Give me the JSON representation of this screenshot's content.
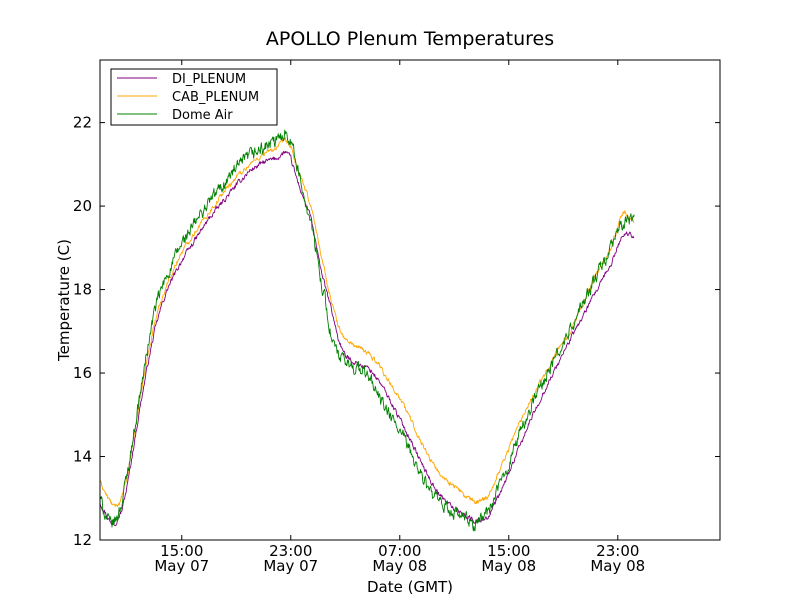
{
  "chart_data": {
    "type": "line",
    "title": "APOLLO Plenum Temperatures",
    "xlabel": "Date (GMT)",
    "ylabel": "Temperature (C)",
    "x_unit": "hours since May 07 00:00 GMT",
    "xlim": [
      9.0,
      54.5
    ],
    "ylim": [
      12,
      23.5
    ],
    "grid": false,
    "legend_position": "top-left",
    "y_ticks": [
      {
        "value": 12,
        "label": "12"
      },
      {
        "value": 14,
        "label": "14"
      },
      {
        "value": 16,
        "label": "16"
      },
      {
        "value": 18,
        "label": "18"
      },
      {
        "value": 20,
        "label": "20"
      },
      {
        "value": 22,
        "label": "22"
      }
    ],
    "x_ticks": [
      {
        "value": 15,
        "time": "15:00",
        "date": "May 07"
      },
      {
        "value": 23,
        "time": "23:00",
        "date": "May 07"
      },
      {
        "value": 31,
        "time": "07:00",
        "date": "May 08"
      },
      {
        "value": 39,
        "time": "15:00",
        "date": "May 08"
      },
      {
        "value": 47,
        "time": "23:00",
        "date": "May 08"
      }
    ],
    "series": [
      {
        "name": "DI_PLENUM",
        "color": "#800080",
        "noise": 0.05,
        "points": [
          [
            9.0,
            12.9
          ],
          [
            9.4,
            12.65
          ],
          [
            9.8,
            12.4
          ],
          [
            10.2,
            12.45
          ],
          [
            10.6,
            12.7
          ],
          [
            11.0,
            13.3
          ],
          [
            11.5,
            14.3
          ],
          [
            12.0,
            15.3
          ],
          [
            12.5,
            16.2
          ],
          [
            13.0,
            17.0
          ],
          [
            13.5,
            17.6
          ],
          [
            14.0,
            18.05
          ],
          [
            15.0,
            18.7
          ],
          [
            16.0,
            19.2
          ],
          [
            17.0,
            19.7
          ],
          [
            18.0,
            20.1
          ],
          [
            19.0,
            20.5
          ],
          [
            20.0,
            20.85
          ],
          [
            21.0,
            21.05
          ],
          [
            22.0,
            21.15
          ],
          [
            22.6,
            21.3
          ],
          [
            23.0,
            21.15
          ],
          [
            23.3,
            20.8
          ],
          [
            23.7,
            20.4
          ],
          [
            24.5,
            19.7
          ],
          [
            25.0,
            18.8
          ],
          [
            25.5,
            18.1
          ],
          [
            26.0,
            17.5
          ],
          [
            26.5,
            16.8
          ],
          [
            27.0,
            16.4
          ],
          [
            28.0,
            16.2
          ],
          [
            28.8,
            16.1
          ],
          [
            29.5,
            15.8
          ],
          [
            30.2,
            15.4
          ],
          [
            31.0,
            14.9
          ],
          [
            31.8,
            14.4
          ],
          [
            32.5,
            13.9
          ],
          [
            33.3,
            13.4
          ],
          [
            34.0,
            13.05
          ],
          [
            35.0,
            12.75
          ],
          [
            35.8,
            12.6
          ],
          [
            36.5,
            12.45
          ],
          [
            37.5,
            12.55
          ],
          [
            38.5,
            13.2
          ],
          [
            39.5,
            14.0
          ],
          [
            40.5,
            14.8
          ],
          [
            41.5,
            15.5
          ],
          [
            42.5,
            16.15
          ],
          [
            43.5,
            16.8
          ],
          [
            44.5,
            17.4
          ],
          [
            45.5,
            18.0
          ],
          [
            46.5,
            18.6
          ],
          [
            47.2,
            19.2
          ],
          [
            47.5,
            19.35
          ],
          [
            48.2,
            19.3
          ]
        ]
      },
      {
        "name": "CAB_PLENUM",
        "color": "#ffa500",
        "noise": 0.05,
        "points": [
          [
            9.0,
            13.4
          ],
          [
            9.5,
            13.05
          ],
          [
            10.0,
            12.8
          ],
          [
            10.5,
            12.9
          ],
          [
            11.0,
            13.5
          ],
          [
            11.5,
            14.5
          ],
          [
            12.0,
            15.5
          ],
          [
            12.5,
            16.4
          ],
          [
            13.0,
            17.2
          ],
          [
            13.5,
            17.75
          ],
          [
            14.0,
            18.2
          ],
          [
            15.0,
            18.9
          ],
          [
            16.0,
            19.4
          ],
          [
            17.0,
            19.85
          ],
          [
            18.0,
            20.3
          ],
          [
            19.0,
            20.7
          ],
          [
            20.0,
            21.0
          ],
          [
            21.0,
            21.25
          ],
          [
            22.0,
            21.4
          ],
          [
            22.6,
            21.6
          ],
          [
            23.0,
            21.4
          ],
          [
            23.3,
            21.1
          ],
          [
            23.7,
            20.7
          ],
          [
            24.5,
            20.0
          ],
          [
            25.0,
            19.2
          ],
          [
            25.5,
            18.4
          ],
          [
            26.0,
            17.7
          ],
          [
            26.5,
            17.1
          ],
          [
            27.0,
            16.8
          ],
          [
            28.0,
            16.6
          ],
          [
            28.8,
            16.45
          ],
          [
            29.5,
            16.2
          ],
          [
            30.2,
            15.8
          ],
          [
            31.0,
            15.4
          ],
          [
            31.8,
            14.9
          ],
          [
            32.5,
            14.4
          ],
          [
            33.3,
            13.9
          ],
          [
            34.0,
            13.55
          ],
          [
            35.0,
            13.3
          ],
          [
            35.8,
            13.05
          ],
          [
            36.5,
            12.9
          ],
          [
            37.5,
            13.05
          ],
          [
            38.5,
            13.8
          ],
          [
            39.5,
            14.6
          ],
          [
            40.5,
            15.3
          ],
          [
            41.5,
            15.9
          ],
          [
            42.5,
            16.5
          ],
          [
            43.5,
            17.0
          ],
          [
            44.5,
            17.7
          ],
          [
            45.5,
            18.4
          ],
          [
            46.5,
            19.0
          ],
          [
            47.2,
            19.7
          ],
          [
            47.5,
            19.85
          ],
          [
            48.2,
            19.6
          ]
        ]
      },
      {
        "name": "Dome Air",
        "color": "#008000",
        "noise": 0.13,
        "points": [
          [
            9.0,
            13.0
          ],
          [
            9.4,
            12.6
          ],
          [
            9.8,
            12.35
          ],
          [
            10.2,
            12.5
          ],
          [
            10.6,
            12.9
          ],
          [
            11.0,
            13.6
          ],
          [
            11.5,
            14.6
          ],
          [
            12.0,
            15.6
          ],
          [
            12.5,
            16.6
          ],
          [
            13.0,
            17.5
          ],
          [
            13.5,
            18.0
          ],
          [
            14.0,
            18.4
          ],
          [
            15.0,
            19.1
          ],
          [
            16.0,
            19.6
          ],
          [
            17.0,
            20.1
          ],
          [
            18.0,
            20.5
          ],
          [
            19.0,
            20.9
          ],
          [
            20.0,
            21.2
          ],
          [
            21.0,
            21.4
          ],
          [
            22.0,
            21.55
          ],
          [
            22.6,
            21.8
          ],
          [
            23.0,
            21.6
          ],
          [
            23.3,
            21.2
          ],
          [
            23.7,
            20.6
          ],
          [
            24.5,
            19.6
          ],
          [
            25.0,
            18.6
          ],
          [
            25.5,
            17.8
          ],
          [
            26.0,
            16.8
          ],
          [
            26.5,
            16.4
          ],
          [
            27.0,
            16.25
          ],
          [
            28.0,
            16.1
          ],
          [
            28.8,
            15.9
          ],
          [
            29.5,
            15.4
          ],
          [
            30.2,
            15.0
          ],
          [
            31.0,
            14.6
          ],
          [
            31.8,
            14.1
          ],
          [
            32.5,
            13.6
          ],
          [
            33.3,
            13.1
          ],
          [
            34.0,
            12.85
          ],
          [
            35.0,
            12.65
          ],
          [
            35.8,
            12.5
          ],
          [
            36.5,
            12.35
          ],
          [
            37.5,
            12.7
          ],
          [
            38.5,
            13.4
          ],
          [
            39.5,
            14.3
          ],
          [
            40.5,
            15.1
          ],
          [
            41.5,
            15.8
          ],
          [
            42.5,
            16.4
          ],
          [
            43.5,
            17.0
          ],
          [
            44.5,
            17.7
          ],
          [
            45.5,
            18.35
          ],
          [
            46.5,
            19.0
          ],
          [
            47.2,
            19.5
          ],
          [
            47.5,
            19.6
          ],
          [
            48.2,
            19.7
          ]
        ]
      }
    ]
  }
}
